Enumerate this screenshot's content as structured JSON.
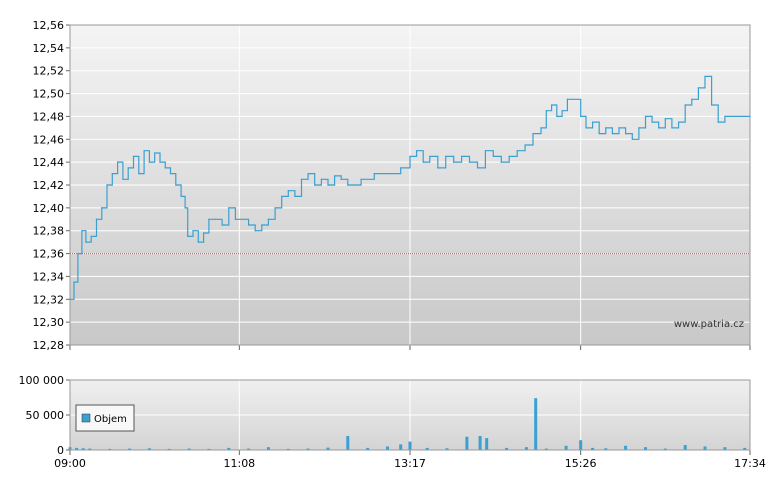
{
  "chart_data": [
    {
      "type": "line",
      "title": "",
      "xlabel": "",
      "ylabel": "",
      "ylim": [
        12.28,
        12.56
      ],
      "y_ticks": [
        "12,28",
        "12,30",
        "12,32",
        "12,34",
        "12,36",
        "12,38",
        "12,40",
        "12,42",
        "12,44",
        "12,46",
        "12,48",
        "12,50",
        "12,52",
        "12,54",
        "12,56"
      ],
      "x_ticks": [
        "09:00",
        "11:08",
        "13:17",
        "15:26",
        "17:34"
      ],
      "grid": true,
      "watermark": "www.patria.cz",
      "reference_line": 12.36,
      "colors": {
        "line": "#3aa0d2",
        "reference": "#e04040",
        "background_top": "#f4f4f4",
        "background_bottom": "#c8c8c8"
      },
      "series": [
        {
          "points": [
            [
              "09:00",
              12.32
            ],
            [
              "09:03",
              12.335
            ],
            [
              "09:06",
              12.36
            ],
            [
              "09:09",
              12.38
            ],
            [
              "09:12",
              12.37
            ],
            [
              "09:16",
              12.375
            ],
            [
              "09:20",
              12.39
            ],
            [
              "09:24",
              12.4
            ],
            [
              "09:28",
              12.42
            ],
            [
              "09:32",
              12.43
            ],
            [
              "09:36",
              12.44
            ],
            [
              "09:40",
              12.425
            ],
            [
              "09:44",
              12.435
            ],
            [
              "09:48",
              12.445
            ],
            [
              "09:52",
              12.43
            ],
            [
              "09:56",
              12.45
            ],
            [
              "10:00",
              12.44
            ],
            [
              "10:04",
              12.448
            ],
            [
              "10:08",
              12.44
            ],
            [
              "10:12",
              12.435
            ],
            [
              "10:16",
              12.43
            ],
            [
              "10:20",
              12.42
            ],
            [
              "10:24",
              12.41
            ],
            [
              "10:27",
              12.4
            ],
            [
              "10:29",
              12.375
            ],
            [
              "10:33",
              12.38
            ],
            [
              "10:37",
              12.37
            ],
            [
              "10:41",
              12.378
            ],
            [
              "10:45",
              12.39
            ],
            [
              "10:50",
              12.39
            ],
            [
              "10:55",
              12.385
            ],
            [
              "11:00",
              12.4
            ],
            [
              "11:05",
              12.39
            ],
            [
              "11:10",
              12.39
            ],
            [
              "11:15",
              12.385
            ],
            [
              "11:20",
              12.38
            ],
            [
              "11:25",
              12.385
            ],
            [
              "11:30",
              12.39
            ],
            [
              "11:35",
              12.4
            ],
            [
              "11:40",
              12.41
            ],
            [
              "11:45",
              12.415
            ],
            [
              "11:50",
              12.41
            ],
            [
              "11:55",
              12.425
            ],
            [
              "12:00",
              12.43
            ],
            [
              "12:05",
              12.42
            ],
            [
              "12:10",
              12.425
            ],
            [
              "12:15",
              12.42
            ],
            [
              "12:20",
              12.428
            ],
            [
              "12:25",
              12.425
            ],
            [
              "12:30",
              12.42
            ],
            [
              "12:40",
              12.425
            ],
            [
              "12:50",
              12.43
            ],
            [
              "13:00",
              12.43
            ],
            [
              "13:10",
              12.435
            ],
            [
              "13:17",
              12.445
            ],
            [
              "13:22",
              12.45
            ],
            [
              "13:27",
              12.44
            ],
            [
              "13:32",
              12.445
            ],
            [
              "13:38",
              12.435
            ],
            [
              "13:44",
              12.445
            ],
            [
              "13:50",
              12.44
            ],
            [
              "13:56",
              12.445
            ],
            [
              "14:02",
              12.44
            ],
            [
              "14:08",
              12.435
            ],
            [
              "14:14",
              12.45
            ],
            [
              "14:20",
              12.445
            ],
            [
              "14:26",
              12.44
            ],
            [
              "14:32",
              12.445
            ],
            [
              "14:38",
              12.45
            ],
            [
              "14:44",
              12.455
            ],
            [
              "14:50",
              12.465
            ],
            [
              "14:56",
              12.47
            ],
            [
              "15:00",
              12.485
            ],
            [
              "15:04",
              12.49
            ],
            [
              "15:08",
              12.48
            ],
            [
              "15:12",
              12.485
            ],
            [
              "15:16",
              12.495
            ],
            [
              "15:20",
              12.495
            ],
            [
              "15:26",
              12.48
            ],
            [
              "15:30",
              12.47
            ],
            [
              "15:35",
              12.475
            ],
            [
              "15:40",
              12.465
            ],
            [
              "15:45",
              12.47
            ],
            [
              "15:50",
              12.465
            ],
            [
              "15:55",
              12.47
            ],
            [
              "16:00",
              12.465
            ],
            [
              "16:05",
              12.46
            ],
            [
              "16:10",
              12.47
            ],
            [
              "16:15",
              12.48
            ],
            [
              "16:20",
              12.475
            ],
            [
              "16:25",
              12.47
            ],
            [
              "16:30",
              12.478
            ],
            [
              "16:35",
              12.47
            ],
            [
              "16:40",
              12.475
            ],
            [
              "16:45",
              12.49
            ],
            [
              "16:50",
              12.495
            ],
            [
              "16:55",
              12.505
            ],
            [
              "17:00",
              12.515
            ],
            [
              "17:05",
              12.49
            ],
            [
              "17:10",
              12.475
            ],
            [
              "17:15",
              12.48
            ],
            [
              "17:20",
              12.48
            ],
            [
              "17:25",
              12.48
            ],
            [
              "17:34",
              12.48
            ]
          ]
        }
      ]
    },
    {
      "type": "bar",
      "title": "",
      "xlabel": "",
      "ylabel": "",
      "ylim": [
        0,
        100000
      ],
      "y_ticks": [
        "0",
        "50 000",
        "100 000"
      ],
      "x_ticks": [
        "09:00",
        "11:08",
        "13:17",
        "15:26",
        "17:34"
      ],
      "grid": true,
      "legend": {
        "position": "top-left",
        "entries": [
          "Objem"
        ]
      },
      "series": [
        {
          "name": "Objem",
          "points": [
            [
              "09:00",
              4000
            ],
            [
              "09:05",
              3000
            ],
            [
              "09:10",
              2500
            ],
            [
              "09:15",
              2000
            ],
            [
              "09:30",
              1500
            ],
            [
              "09:45",
              2000
            ],
            [
              "10:00",
              2500
            ],
            [
              "10:15",
              1500
            ],
            [
              "10:30",
              2000
            ],
            [
              "10:45",
              1500
            ],
            [
              "11:00",
              3000
            ],
            [
              "11:15",
              2000
            ],
            [
              "11:30",
              4000
            ],
            [
              "11:45",
              1500
            ],
            [
              "12:00",
              2000
            ],
            [
              "12:15",
              3500
            ],
            [
              "12:30",
              20000
            ],
            [
              "12:45",
              3000
            ],
            [
              "13:00",
              5000
            ],
            [
              "13:10",
              8000
            ],
            [
              "13:17",
              12000
            ],
            [
              "13:30",
              3000
            ],
            [
              "13:45",
              2500
            ],
            [
              "14:00",
              19000
            ],
            [
              "14:10",
              20000
            ],
            [
              "14:15",
              17000
            ],
            [
              "14:30",
              3000
            ],
            [
              "14:45",
              4000
            ],
            [
              "14:52",
              74000
            ],
            [
              "15:00",
              2000
            ],
            [
              "15:15",
              6000
            ],
            [
              "15:26",
              14000
            ],
            [
              "15:35",
              3000
            ],
            [
              "15:45",
              2500
            ],
            [
              "16:00",
              6000
            ],
            [
              "16:15",
              4000
            ],
            [
              "16:30",
              2000
            ],
            [
              "16:45",
              7000
            ],
            [
              "17:00",
              5000
            ],
            [
              "17:15",
              4000
            ],
            [
              "17:30",
              3000
            ]
          ]
        }
      ]
    }
  ]
}
